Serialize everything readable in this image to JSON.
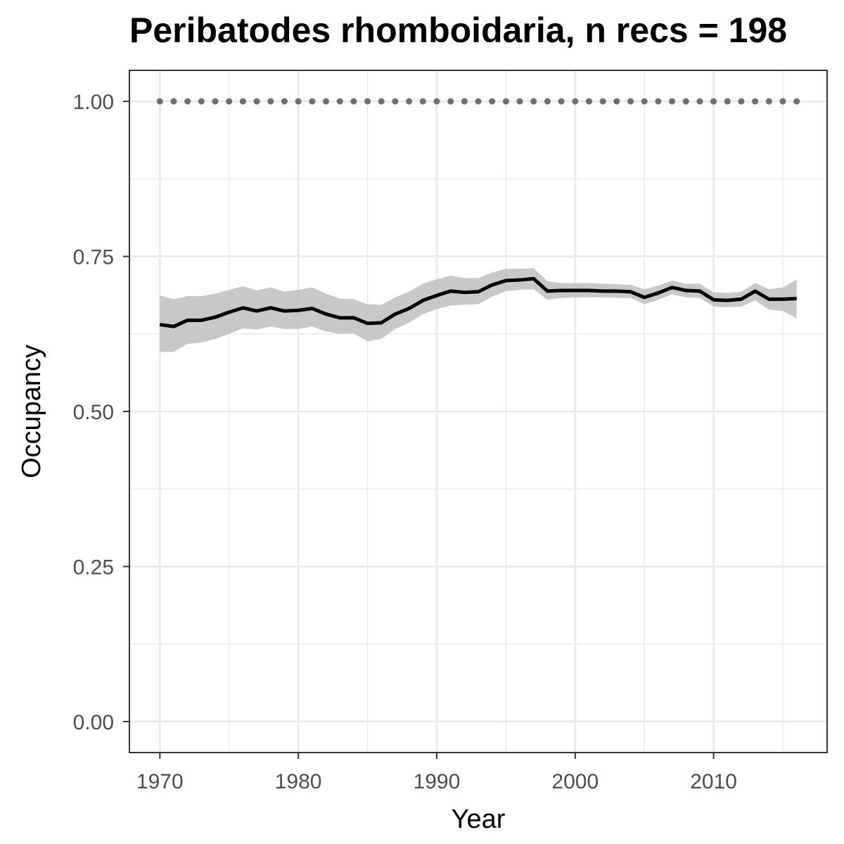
{
  "chart_data": {
    "type": "line",
    "title": "Peribatodes rhomboidaria, n recs = 198",
    "xlabel": "Year",
    "ylabel": "Occupancy",
    "xlim": [
      1967.8,
      2018.2
    ],
    "ylim": [
      -0.05,
      1.05
    ],
    "x_ticks": [
      1970,
      1980,
      1990,
      2000,
      2010
    ],
    "y_ticks": [
      0.0,
      0.25,
      0.5,
      0.75,
      1.0
    ],
    "y_tick_labels": [
      "0.00",
      "0.25",
      "0.50",
      "0.75",
      "1.00"
    ],
    "grid": true,
    "legend": "none",
    "x": [
      1970,
      1971,
      1972,
      1973,
      1974,
      1975,
      1976,
      1977,
      1978,
      1979,
      1980,
      1981,
      1982,
      1983,
      1984,
      1985,
      1986,
      1987,
      1988,
      1989,
      1990,
      1991,
      1992,
      1993,
      1994,
      1995,
      1996,
      1997,
      1998,
      1999,
      2000,
      2001,
      2002,
      2003,
      2004,
      2005,
      2006,
      2007,
      2008,
      2009,
      2010,
      2011,
      2012,
      2013,
      2014,
      2015,
      2016
    ],
    "series": [
      {
        "values": [
          0.64,
          0.637,
          0.647,
          0.647,
          0.652,
          0.66,
          0.667,
          0.662,
          0.667,
          0.662,
          0.663,
          0.666,
          0.657,
          0.651,
          0.651,
          0.642,
          0.643,
          0.657,
          0.666,
          0.679,
          0.687,
          0.694,
          0.692,
          0.693,
          0.704,
          0.711,
          0.712,
          0.714,
          0.694,
          0.695,
          0.695,
          0.695,
          0.694,
          0.694,
          0.693,
          0.684,
          0.691,
          0.7,
          0.695,
          0.694,
          0.68,
          0.679,
          0.681,
          0.694,
          0.681,
          0.681,
          0.682
        ],
        "lower": [
          0.596,
          0.596,
          0.609,
          0.611,
          0.617,
          0.625,
          0.634,
          0.632,
          0.637,
          0.633,
          0.633,
          0.637,
          0.629,
          0.625,
          0.626,
          0.613,
          0.617,
          0.633,
          0.643,
          0.657,
          0.665,
          0.671,
          0.672,
          0.673,
          0.685,
          0.694,
          0.696,
          0.697,
          0.68,
          0.683,
          0.684,
          0.684,
          0.684,
          0.683,
          0.683,
          0.673,
          0.68,
          0.689,
          0.684,
          0.683,
          0.669,
          0.668,
          0.669,
          0.679,
          0.664,
          0.662,
          0.65
        ],
        "upper": [
          0.687,
          0.681,
          0.686,
          0.686,
          0.69,
          0.696,
          0.702,
          0.695,
          0.7,
          0.693,
          0.696,
          0.7,
          0.69,
          0.682,
          0.681,
          0.673,
          0.672,
          0.684,
          0.693,
          0.706,
          0.713,
          0.719,
          0.715,
          0.715,
          0.724,
          0.73,
          0.73,
          0.731,
          0.71,
          0.707,
          0.707,
          0.707,
          0.706,
          0.705,
          0.704,
          0.697,
          0.703,
          0.711,
          0.706,
          0.706,
          0.692,
          0.691,
          0.693,
          0.707,
          0.697,
          0.7,
          0.713
        ],
        "color": "#000000",
        "band_color": "#bebebe"
      },
      {
        "values": [
          1,
          1,
          1,
          1,
          1,
          1,
          1,
          1,
          1,
          1,
          1,
          1,
          1,
          1,
          1,
          1,
          1,
          1,
          1,
          1,
          1,
          1,
          1,
          1,
          1,
          1,
          1,
          1,
          1,
          1,
          1,
          1,
          1,
          1,
          1,
          1,
          1,
          1,
          1,
          1,
          1,
          1,
          1,
          1,
          1,
          1,
          1
        ],
        "style": "dotted",
        "color": "#6e6e6e"
      }
    ]
  }
}
